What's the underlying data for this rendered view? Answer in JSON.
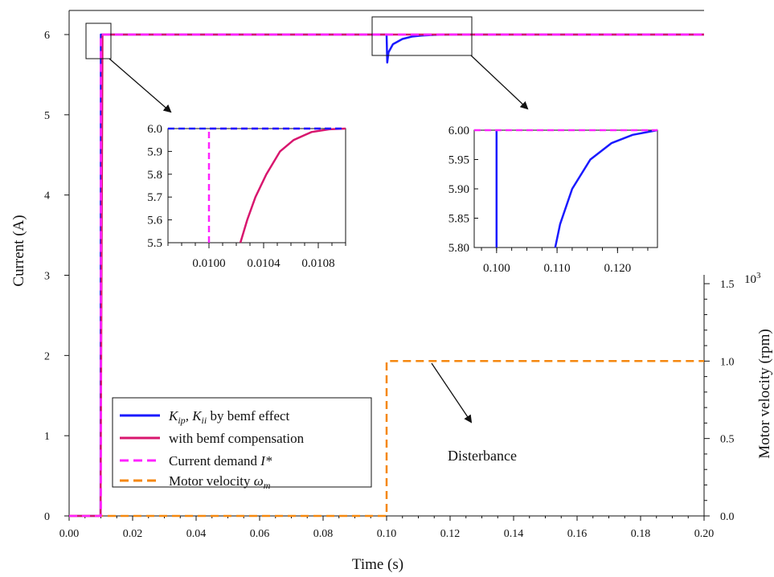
{
  "colors": {
    "kip_kii_bemf": "#1a1aff",
    "bemf_compensation": "#d8166e",
    "current_demand": "#ff22ff",
    "motor_velocity": "#f5870f",
    "axis": "#111111"
  },
  "chart_data": [
    {
      "id": "main",
      "type": "line",
      "xlabel": "Time (s)",
      "ylabel": "Current  (A)",
      "xlim": [
        0,
        0.2
      ],
      "ylim": [
        0,
        6
      ],
      "x_ticks": [
        "0.00",
        "0.02",
        "0.04",
        "0.06",
        "0.08",
        "0.10",
        "0.12",
        "0.14",
        "0.16",
        "0.18",
        "0.20"
      ],
      "y_ticks": [
        "0",
        "1",
        "2",
        "3",
        "4",
        "5",
        "6"
      ],
      "secondary_y": {
        "label": "Motor velocity  (rpm)",
        "multiplier": "10",
        "multiplier_exp": "3",
        "lim": [
          0,
          1.5
        ],
        "ticks": [
          "0.0",
          "0.5",
          "1.0",
          "1.5"
        ]
      },
      "grid": false,
      "legend_position": "bottom-left",
      "series": [
        {
          "name": "K_ip, K_ii by bemf effect",
          "name_main": "K",
          "name_sub1": "ip",
          "name_mid": ", K",
          "name_sub2": "ii",
          "name_tail": " by bemf effect",
          "style": "solid",
          "color_key": "kip_kii_bemf",
          "points": [
            [
              0,
              0
            ],
            [
              0.0099,
              0
            ],
            [
              0.01,
              6
            ],
            [
              0.1,
              6
            ],
            [
              0.1002,
              5.65
            ],
            [
              0.1006,
              5.78
            ],
            [
              0.102,
              5.88
            ],
            [
              0.105,
              5.945
            ],
            [
              0.108,
              5.975
            ],
            [
              0.111,
              5.988
            ],
            [
              0.115,
              5.996
            ],
            [
              0.12,
              6
            ],
            [
              0.2,
              6
            ]
          ]
        },
        {
          "name": "with bemf compensation",
          "style": "solid",
          "color_key": "bemf_compensation",
          "points": [
            [
              0,
              0
            ],
            [
              0.0099,
              0
            ],
            [
              0.0105,
              6
            ],
            [
              0.2,
              6
            ]
          ]
        },
        {
          "name": "Current demand I*",
          "name_main": "Current demand ",
          "name_italic": "I*",
          "style": "dashed",
          "color_key": "current_demand",
          "points": [
            [
              0,
              0
            ],
            [
              0.01,
              0
            ],
            [
              0.01,
              6
            ],
            [
              0.2,
              6
            ]
          ]
        },
        {
          "name": "Motor velocity ω_m",
          "name_main": "Motor velocity ",
          "name_italic": "ω",
          "name_sub": "m",
          "style": "dashed",
          "color_key": "motor_velocity",
          "axis": "secondary",
          "points": [
            [
              0,
              0
            ],
            [
              0.1,
              0
            ],
            [
              0.1,
              1.0
            ],
            [
              0.2,
              1.0
            ]
          ]
        }
      ],
      "annotations": [
        {
          "text": "Disterbance"
        }
      ]
    },
    {
      "id": "inset1",
      "type": "line",
      "xlim": [
        0.0097,
        0.011
      ],
      "ylim": [
        5.5,
        6.0
      ],
      "x_ticks": [
        "0.0100",
        "0.0104",
        "0.0108"
      ],
      "x_tick_values": [
        0.01,
        0.0104,
        0.0108
      ],
      "y_ticks": [
        "5.5",
        "5.6",
        "5.7",
        "5.8",
        "5.9",
        "6.0"
      ],
      "series": [
        {
          "name": "with bemf compensation",
          "style": "solid",
          "color_key": "bemf_compensation",
          "points": [
            [
              0.01023,
              5.5
            ],
            [
              0.01028,
              5.6
            ],
            [
              0.01034,
              5.7
            ],
            [
              0.01042,
              5.8
            ],
            [
              0.01052,
              5.9
            ],
            [
              0.01062,
              5.95
            ],
            [
              0.01075,
              5.985
            ],
            [
              0.01088,
              5.997
            ],
            [
              0.011,
              6.0
            ]
          ]
        },
        {
          "name": "Current demand I*",
          "style": "dashed",
          "color_key": "current_demand",
          "points": [
            [
              0.01,
              5.5
            ],
            [
              0.01,
              6.0
            ],
            [
              0.011,
              6.0
            ]
          ]
        },
        {
          "name": "K_ip, K_ii by bemf effect",
          "style": "dashed",
          "color_key": "kip_kii_bemf",
          "points": [
            [
              0.0097,
              6.0
            ],
            [
              0.011,
              6.0
            ]
          ]
        }
      ]
    },
    {
      "id": "inset2",
      "type": "line",
      "xlim": [
        0.0963,
        0.1266
      ],
      "ylim": [
        5.8,
        6.0
      ],
      "x_ticks": [
        "0.100",
        "0.110",
        "0.120"
      ],
      "x_tick_values": [
        0.1,
        0.11,
        0.12
      ],
      "y_ticks": [
        "5.80",
        "5.85",
        "5.90",
        "5.95",
        "6.00"
      ],
      "series": [
        {
          "name": "K_ip, K_ii by bemf effect",
          "style": "solid",
          "color_key": "kip_kii_bemf",
          "points": [
            [
              0.1,
              5.8
            ],
            [
              0.1,
              6.0
            ]
          ]
        },
        {
          "name": "K_ip, K_ii by bemf effect",
          "style": "solid",
          "color_key": "kip_kii_bemf",
          "points": [
            [
              0.1097,
              5.8
            ],
            [
              0.1105,
              5.84
            ],
            [
              0.1125,
              5.9
            ],
            [
              0.1155,
              5.95
            ],
            [
              0.119,
              5.978
            ],
            [
              0.1225,
              5.992
            ],
            [
              0.1266,
              6.0
            ]
          ]
        },
        {
          "name": "Current demand I*",
          "style": "dashed",
          "color_key": "current_demand",
          "points": [
            [
              0.0963,
              6.0
            ],
            [
              0.1266,
              6.0
            ]
          ]
        }
      ]
    }
  ]
}
